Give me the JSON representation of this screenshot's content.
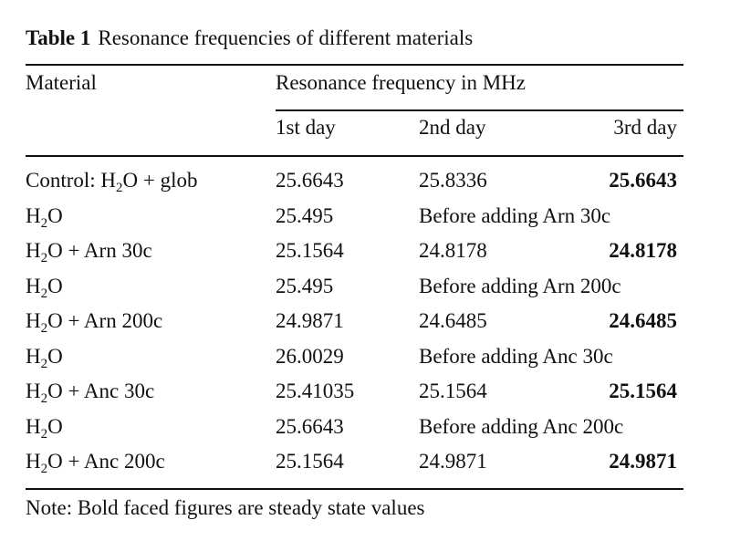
{
  "caption": {
    "label": "Table 1",
    "title": "Resonance frequencies of different materials"
  },
  "headers": {
    "material": "Material",
    "frequency": "Resonance frequency in MHz",
    "day1": "1st day",
    "day2": "2nd day",
    "day3": "3rd day"
  },
  "rows": [
    {
      "prefix": "Control: H",
      "sub": "2",
      "suffix": "O + glob",
      "d1": "25.6643",
      "d2": "25.8336",
      "d3": "25.6643"
    },
    {
      "prefix": "H",
      "sub": "2",
      "suffix": "O",
      "d1": "25.495",
      "d2": "Before adding Arn 30c",
      "d3": ""
    },
    {
      "prefix": "H",
      "sub": "2",
      "suffix": "O + Arn 30c",
      "d1": "25.1564",
      "d2": "24.8178",
      "d3": "24.8178"
    },
    {
      "prefix": "H",
      "sub": "2",
      "suffix": "O",
      "d1": "25.495",
      "d2": "Before adding Arn 200c",
      "d3": ""
    },
    {
      "prefix": "H",
      "sub": "2",
      "suffix": "O + Arn 200c",
      "d1": "24.9871",
      "d2": "24.6485",
      "d3": "24.6485"
    },
    {
      "prefix": "H",
      "sub": "2",
      "suffix": "O",
      "d1": "26.0029",
      "d2": "Before adding Anc 30c",
      "d3": ""
    },
    {
      "prefix": "H",
      "sub": "2",
      "suffix": "O + Anc 30c",
      "d1": "25.41035",
      "d2": "25.1564",
      "d3": "25.1564"
    },
    {
      "prefix": "H",
      "sub": "2",
      "suffix": "O",
      "d1": "25.6643",
      "d2": "Before adding Anc 200c",
      "d3": ""
    },
    {
      "prefix": "H",
      "sub": "2",
      "suffix": "O + Anc 200c",
      "d1": "25.1564",
      "d2": "24.9871",
      "d3": "24.9871"
    }
  ],
  "note": "Note: Bold faced figures are steady state values"
}
